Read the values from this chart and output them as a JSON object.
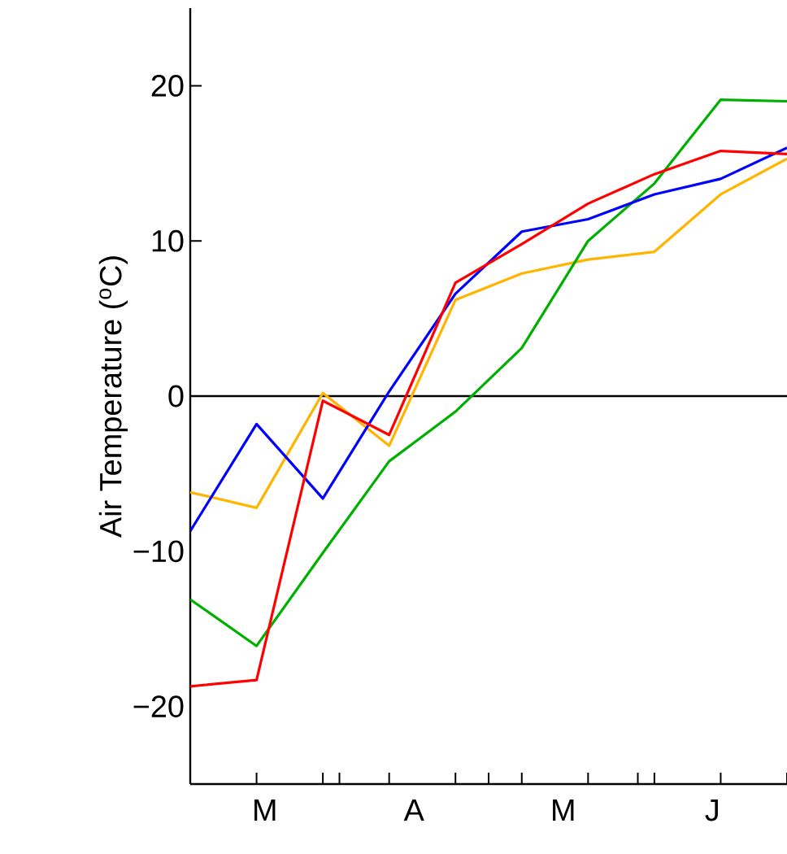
{
  "chart_data": {
    "type": "line",
    "ylabel": "Air Temperature ($^{o}$C)",
    "ylim": [
      -25,
      25
    ],
    "yticks": [
      {
        "value": -20,
        "label": "−20"
      },
      {
        "value": -10,
        "label": "−10"
      },
      0,
      10,
      20
    ],
    "categories": [
      null,
      null,
      null,
      null,
      null,
      null,
      null,
      null,
      null,
      null
    ],
    "annotations": [
      "M",
      "A",
      "M",
      "J"
    ],
    "series": [
      {
        "color": "#ffb400",
        "values": [
          -6.2,
          -7.2,
          0.2,
          -3.2,
          6.2,
          7.9,
          8.8,
          9.3,
          13.0,
          15.3
        ]
      },
      {
        "color": "#00b000",
        "values": [
          -13.1,
          -16.1,
          -10.1,
          -4.2,
          -1.0,
          3.1,
          10.0,
          13.7,
          19.1,
          19.0
        ]
      },
      {
        "color": "#0000ff",
        "values": [
          -8.7,
          -1.8,
          -6.6,
          0.3,
          6.6,
          10.6,
          11.4,
          13.0,
          14.0,
          16.0
        ]
      },
      {
        "color": "#ff0000",
        "values": [
          -18.7,
          -18.3,
          -0.3,
          -2.5,
          7.3,
          9.8,
          12.4,
          14.3,
          15.8,
          15.6
        ]
      }
    ],
    "ref_lines": [
      {
        "axis": "y",
        "value": 0,
        "color": "#000000"
      }
    ],
    "grid": false,
    "marker": "none",
    "line_style": "solid"
  }
}
